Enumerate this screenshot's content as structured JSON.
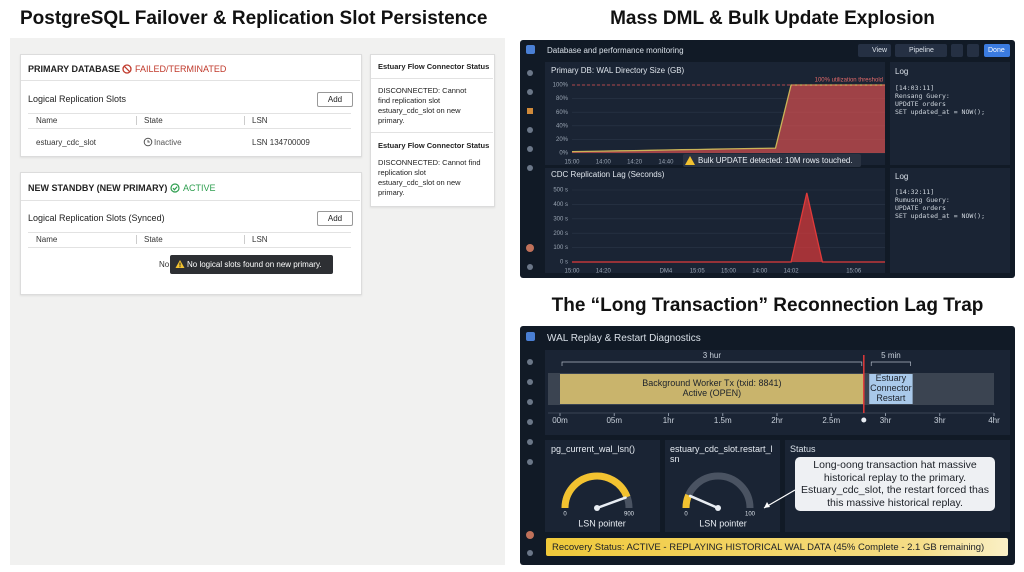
{
  "failover": {
    "title": "PostgreSQL Failover & Replication Slot Persistence",
    "primary": {
      "heading": "PRIMARY DATABASE",
      "status": "FAILED/TERMINATED",
      "slots_title": "Logical Replication Slots",
      "add": "Add",
      "columns": [
        "Name",
        "State",
        "LSN"
      ],
      "row": [
        "estuary_cdc_slot",
        "Inactive",
        "LSN 134700009"
      ]
    },
    "standby": {
      "heading": "NEW STANDBY (NEW PRIMARY)",
      "status": "ACTIVE",
      "slots_title": "Logical Replication Slots (Synced)",
      "add": "Add",
      "columns": [
        "Name",
        "State",
        "LSN"
      ],
      "empty": "No",
      "tooltip": "No logical slots found on new primary."
    },
    "connector": [
      {
        "title": "Estuary Flow Connector Status",
        "message": "DISCONNECTED: Cannot find replication slot estuary_cdc_slot on new primary."
      },
      {
        "title": "Estuary Flow Connector Status",
        "message": "DISCONNECTED: Cannot find replication slot estuary_cdc_slot on new primary."
      }
    ]
  },
  "dml": {
    "title": "Mass DML & Bulk Update Explosion",
    "toolbar": {
      "title": "Database and performance monitoring",
      "view": "View",
      "pipeline": "Pipeline",
      "done": "Done"
    },
    "logs": [
      {
        "title": "Log",
        "lines": [
          "[14:03:11]",
          "Rensang Guery:",
          "UPDdTE orders",
          "SET updated_at = NOW();"
        ]
      },
      {
        "title": "Log",
        "lines": [
          "[14:32:11]",
          "Rumusng Guery:",
          "UPDATE orders",
          "SET updated_at = NOW();"
        ]
      }
    ]
  },
  "lag": {
    "title": "The “Long Transaction” Reconnection Lag Trap",
    "panel_title": "WAL Replay & Restart Diagnostics",
    "status_title": "Status",
    "callout": "Long-oong transaction hat massive historical replay to the primary. Estuary_cdc_slot, the restart forced thas this massive historical replay.",
    "recovery": "Recovery Status: ACTIVE - REPLAYING HISTORICAL WAL DATA (45% Complete - 2.1 GB remaining)"
  },
  "chart_data": [
    {
      "type": "line",
      "title": "Primary DB: WAL Directory Size (GB)",
      "categories": [
        "15:00",
        null,
        "14:00",
        null,
        "14:20",
        null,
        "14:40",
        null,
        "14:50",
        null,
        "15:00",
        null,
        "15:05",
        null,
        "15:10",
        null,
        "15:20",
        null,
        null,
        null,
        null
      ],
      "values": [
        2,
        2.4,
        2.8,
        3.2,
        3.6,
        4,
        4.4,
        4.8,
        5.2,
        5.6,
        6,
        6.4,
        6.8,
        7.2,
        100,
        100,
        100,
        100,
        100,
        100,
        100
      ],
      "color": "#d95050",
      "line_color": "#c9b458",
      "ylim": [
        0,
        100
      ],
      "yticks": [
        {
          "value": 0,
          "label": "0%"
        },
        {
          "value": 20,
          "label": "20%"
        },
        {
          "value": 40,
          "label": "40%"
        },
        {
          "value": 60,
          "label": "60%"
        },
        {
          "value": 80,
          "label": "80%"
        },
        {
          "value": 100,
          "label": "100%"
        }
      ],
      "threshold": 100,
      "threshold_label": "100% utilization threshold",
      "annotation": "Bulk UPDATE detected: 10M rows touched.",
      "grid": true
    },
    {
      "type": "line",
      "title": "CDC Replication Lag (Seconds)",
      "categories": [
        "15:00",
        null,
        "14:20",
        null,
        null,
        null,
        "DM4",
        null,
        "15:05",
        null,
        "15:00",
        null,
        "14:00",
        null,
        "14:02",
        null,
        null,
        null,
        "15:06",
        null,
        null
      ],
      "values": [
        0,
        0,
        0,
        0,
        0,
        0,
        0,
        0,
        0,
        0,
        0,
        0,
        0,
        0,
        0,
        480,
        0,
        0,
        0,
        0,
        0
      ],
      "color": "#e03a3a",
      "line_color": "#e03a3a",
      "ylim": [
        0,
        500
      ],
      "yticks": [
        {
          "value": 0,
          "label": "0 s"
        },
        {
          "value": 100,
          "label": "100 s"
        },
        {
          "value": 200,
          "label": "200 s"
        },
        {
          "value": 300,
          "label": "300 s"
        },
        {
          "value": 400,
          "label": "400 s"
        },
        {
          "value": 500,
          "label": "500 s"
        }
      ],
      "grid": true
    },
    {
      "type": "timeline",
      "xlim": [
        0,
        4
      ],
      "xticks": [
        {
          "value": 0,
          "label": "00m"
        },
        {
          "value": 0.5,
          "label": "05m"
        },
        {
          "value": 1,
          "label": "1hr"
        },
        {
          "value": 1.5,
          "label": "1.5m"
        },
        {
          "value": 2,
          "label": "2hr"
        },
        {
          "value": 2.5,
          "label": "2.5m"
        },
        {
          "value": 3,
          "label": "3hr"
        },
        {
          "value": 3.5,
          "label": "3hr"
        },
        {
          "value": 4,
          "label": "4hr"
        }
      ],
      "spans": [
        {
          "lines": [
            "Background Worker Tx (txid: 8841)",
            "Active (OPEN)"
          ],
          "start": 0,
          "end": 2.8,
          "duration": "3 hur",
          "color": "#c9b46c"
        },
        {
          "lines": [
            "Estuary",
            "Connector",
            "Restart"
          ],
          "start": 2.85,
          "end": 3.25,
          "duration": "5 min",
          "color": "#a9c9ea"
        }
      ],
      "marker": 2.8
    },
    {
      "type": "gauge",
      "title": "pg_current_wal_lsn()",
      "min": 0,
      "max": 900,
      "value": 800,
      "caption": "LSN pointer",
      "color": "#f2c230"
    },
    {
      "type": "gauge",
      "title": "estuary_cdc_slot.restart_lsn",
      "min": 0,
      "max": 100,
      "value": 13,
      "caption": "LSN pointer",
      "color": "#f2c230"
    }
  ]
}
